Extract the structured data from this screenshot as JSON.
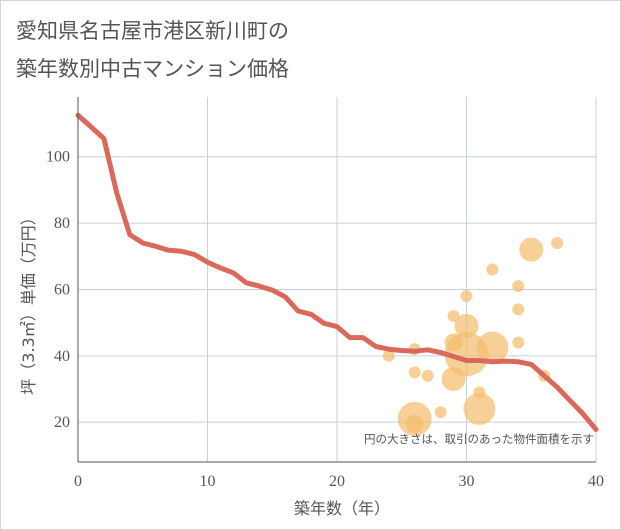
{
  "chart_data": {
    "type": "line+scatter",
    "title": [
      "愛知県名古屋市港区新川町の",
      "築年数別中古マンション価格"
    ],
    "xlabel": "築年数（年）",
    "ylabel": "坪（3.3㎡）単価（万円）",
    "note": "円の大きさは、取引のあった物件面積を示す",
    "xlim": [
      0,
      40
    ],
    "ylim": [
      8,
      118
    ],
    "x_ticks": [
      "0",
      "10",
      "20",
      "30",
      "40"
    ],
    "y_ticks": [
      "20",
      "40",
      "60",
      "80",
      "100"
    ],
    "grid": true,
    "colors": {
      "line": "#d9695a",
      "bubble": "#f2be6e",
      "grid": "#c8d2de",
      "axis": "#555555"
    },
    "line": {
      "x": [
        0,
        1,
        2,
        3,
        4,
        5,
        6,
        7,
        8,
        9,
        10,
        11,
        12,
        13,
        14,
        15,
        16,
        17,
        18,
        19,
        20,
        21,
        22,
        23,
        24,
        25,
        26,
        27,
        28,
        29,
        30,
        31,
        32,
        33,
        34,
        35,
        36,
        37,
        38,
        39,
        40
      ],
      "y": [
        112.5,
        109,
        105.5,
        89,
        76.5,
        74,
        73,
        71.8,
        71.5,
        70.5,
        68.2,
        66.5,
        65,
        62,
        61,
        59.8,
        57.8,
        53.5,
        52.5,
        49.8,
        48.8,
        45.5,
        45.5,
        42.8,
        42,
        41.6,
        41.4,
        41.8,
        41,
        39.8,
        38.6,
        38.6,
        38.2,
        38.4,
        38.2,
        37.4,
        34,
        30.5,
        26.5,
        22.5,
        17.8
      ]
    },
    "bubbles": [
      {
        "x": 24,
        "y": 40,
        "r": 6
      },
      {
        "x": 26,
        "y": 42,
        "r": 6
      },
      {
        "x": 26,
        "y": 35,
        "r": 6
      },
      {
        "x": 27,
        "y": 34,
        "r": 6
      },
      {
        "x": 28,
        "y": 23,
        "r": 6
      },
      {
        "x": 26,
        "y": 21,
        "r": 17
      },
      {
        "x": 26,
        "y": 19.5,
        "r": 9
      },
      {
        "x": 29,
        "y": 52,
        "r": 6
      },
      {
        "x": 30,
        "y": 58,
        "r": 6
      },
      {
        "x": 30,
        "y": 49,
        "r": 12
      },
      {
        "x": 29,
        "y": 44,
        "r": 9
      },
      {
        "x": 30,
        "y": 40.5,
        "r": 22
      },
      {
        "x": 29,
        "y": 33,
        "r": 12
      },
      {
        "x": 31,
        "y": 29,
        "r": 6
      },
      {
        "x": 31,
        "y": 24,
        "r": 16
      },
      {
        "x": 32,
        "y": 66,
        "r": 6
      },
      {
        "x": 32,
        "y": 42.5,
        "r": 16
      },
      {
        "x": 34,
        "y": 61,
        "r": 6
      },
      {
        "x": 34,
        "y": 54,
        "r": 6
      },
      {
        "x": 34,
        "y": 44,
        "r": 6
      },
      {
        "x": 35,
        "y": 72,
        "r": 12
      },
      {
        "x": 36,
        "y": 34,
        "r": 6
      },
      {
        "x": 37,
        "y": 74,
        "r": 6
      }
    ]
  }
}
